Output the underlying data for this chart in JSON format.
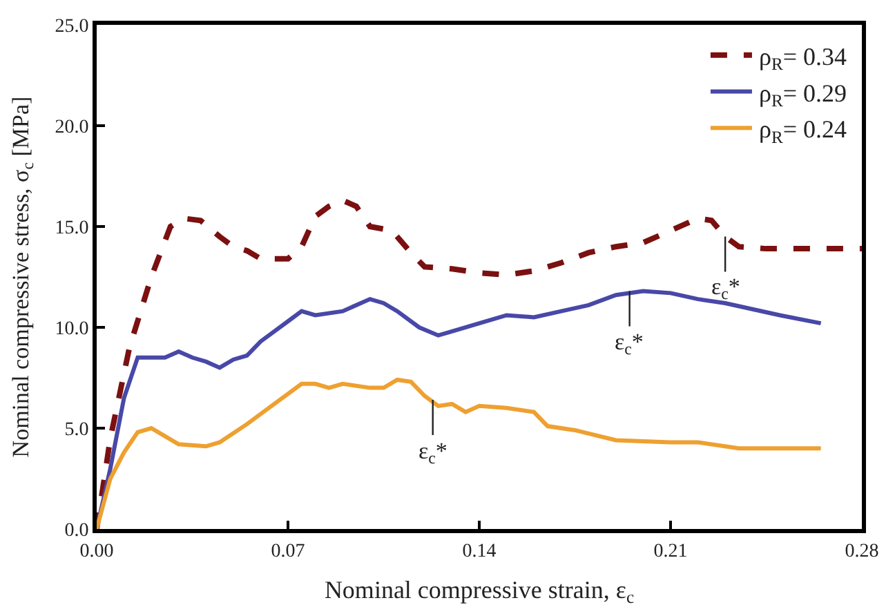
{
  "chart_data": {
    "type": "line",
    "xlabel": "Nominal compressive strain, ε$_{c}$",
    "ylabel": "Nominal compressive stress, σ$_{c}$ [MPa]",
    "xlim": [
      0,
      0.28
    ],
    "xticks": [
      {
        "value": 0,
        "label": "0.00"
      },
      {
        "value": 0.07,
        "label": "0.07"
      },
      {
        "value": 0.14,
        "label": "0.14"
      },
      {
        "value": 0.21,
        "label": "0.21"
      },
      {
        "value": 0.28,
        "label": "0.28"
      }
    ],
    "ylim": [
      0,
      25
    ],
    "yticks": [
      {
        "value": 0,
        "label": "0.0"
      },
      {
        "value": 5,
        "label": "5.0"
      },
      {
        "value": 10,
        "label": "10.0"
      },
      {
        "value": 15,
        "label": "15.0"
      },
      {
        "value": 20,
        "label": "20.0"
      },
      {
        "value": 25,
        "label": "25.0"
      }
    ],
    "legend": "top right",
    "marker": "none",
    "series": [
      {
        "name": "ρ$_{R}$= 0.34",
        "color": "#7b1010",
        "line_style": "dashed",
        "x": [
          0,
          0.005,
          0.012,
          0.02,
          0.027,
          0.032,
          0.038,
          0.045,
          0.05,
          0.055,
          0.06,
          0.07,
          0.075,
          0.08,
          0.085,
          0.09,
          0.095,
          0.1,
          0.108,
          0.115,
          0.12,
          0.13,
          0.14,
          0.15,
          0.16,
          0.17,
          0.18,
          0.19,
          0.2,
          0.21,
          0.22,
          0.225,
          0.23,
          0.235,
          0.245,
          0.28
        ],
        "values": [
          0,
          4.5,
          9,
          12.5,
          15.0,
          15.4,
          15.3,
          14.5,
          14.0,
          13.8,
          13.4,
          13.4,
          14.0,
          15.5,
          16.0,
          16.3,
          16.0,
          15.0,
          14.8,
          13.7,
          13.0,
          12.9,
          12.7,
          12.6,
          12.8,
          13.2,
          13.7,
          14.0,
          14.2,
          14.8,
          15.4,
          15.3,
          14.5,
          14.0,
          13.9,
          13.9
        ]
      },
      {
        "name": "ρ$_{R}$= 0.29",
        "color": "#4848a8",
        "line_style": "solid",
        "x": [
          0,
          0.005,
          0.01,
          0.015,
          0.025,
          0.03,
          0.035,
          0.04,
          0.045,
          0.05,
          0.055,
          0.06,
          0.07,
          0.075,
          0.08,
          0.09,
          0.1,
          0.105,
          0.11,
          0.118,
          0.125,
          0.13,
          0.14,
          0.15,
          0.16,
          0.17,
          0.18,
          0.19,
          0.2,
          0.21,
          0.22,
          0.23,
          0.24,
          0.25,
          0.265
        ],
        "values": [
          0,
          3,
          6.5,
          8.5,
          8.5,
          8.8,
          8.5,
          8.3,
          8.0,
          8.4,
          8.6,
          9.3,
          10.3,
          10.8,
          10.6,
          10.8,
          11.4,
          11.2,
          10.8,
          10.0,
          9.6,
          9.8,
          10.2,
          10.6,
          10.5,
          10.8,
          11.1,
          11.6,
          11.8,
          11.7,
          11.4,
          11.2,
          10.9,
          10.6,
          10.2
        ]
      },
      {
        "name": "ρ$_{R}$= 0.24",
        "color": "#eea030",
        "line_style": "solid",
        "x": [
          0,
          0.005,
          0.01,
          0.015,
          0.02,
          0.025,
          0.03,
          0.04,
          0.045,
          0.055,
          0.065,
          0.075,
          0.08,
          0.085,
          0.09,
          0.1,
          0.105,
          0.11,
          0.115,
          0.12,
          0.125,
          0.13,
          0.135,
          0.14,
          0.15,
          0.16,
          0.165,
          0.175,
          0.19,
          0.21,
          0.22,
          0.235,
          0.265
        ],
        "values": [
          0,
          2.5,
          3.8,
          4.8,
          5.0,
          4.6,
          4.2,
          4.1,
          4.3,
          5.2,
          6.2,
          7.2,
          7.2,
          7.0,
          7.2,
          7.0,
          7.0,
          7.4,
          7.3,
          6.6,
          6.1,
          6.2,
          5.8,
          6.1,
          6.0,
          5.8,
          5.1,
          4.9,
          4.4,
          4.3,
          4.3,
          4.0,
          4.0
        ]
      }
    ],
    "annotations": [
      {
        "text": "ε$_{c}$*",
        "x": 0.123,
        "y": 6.4
      },
      {
        "text": "ε$_{c}$*",
        "x": 0.195,
        "y": 11.8
      },
      {
        "text": "ε$_{c}$*",
        "x": 0.23,
        "y": 14.5
      }
    ]
  }
}
